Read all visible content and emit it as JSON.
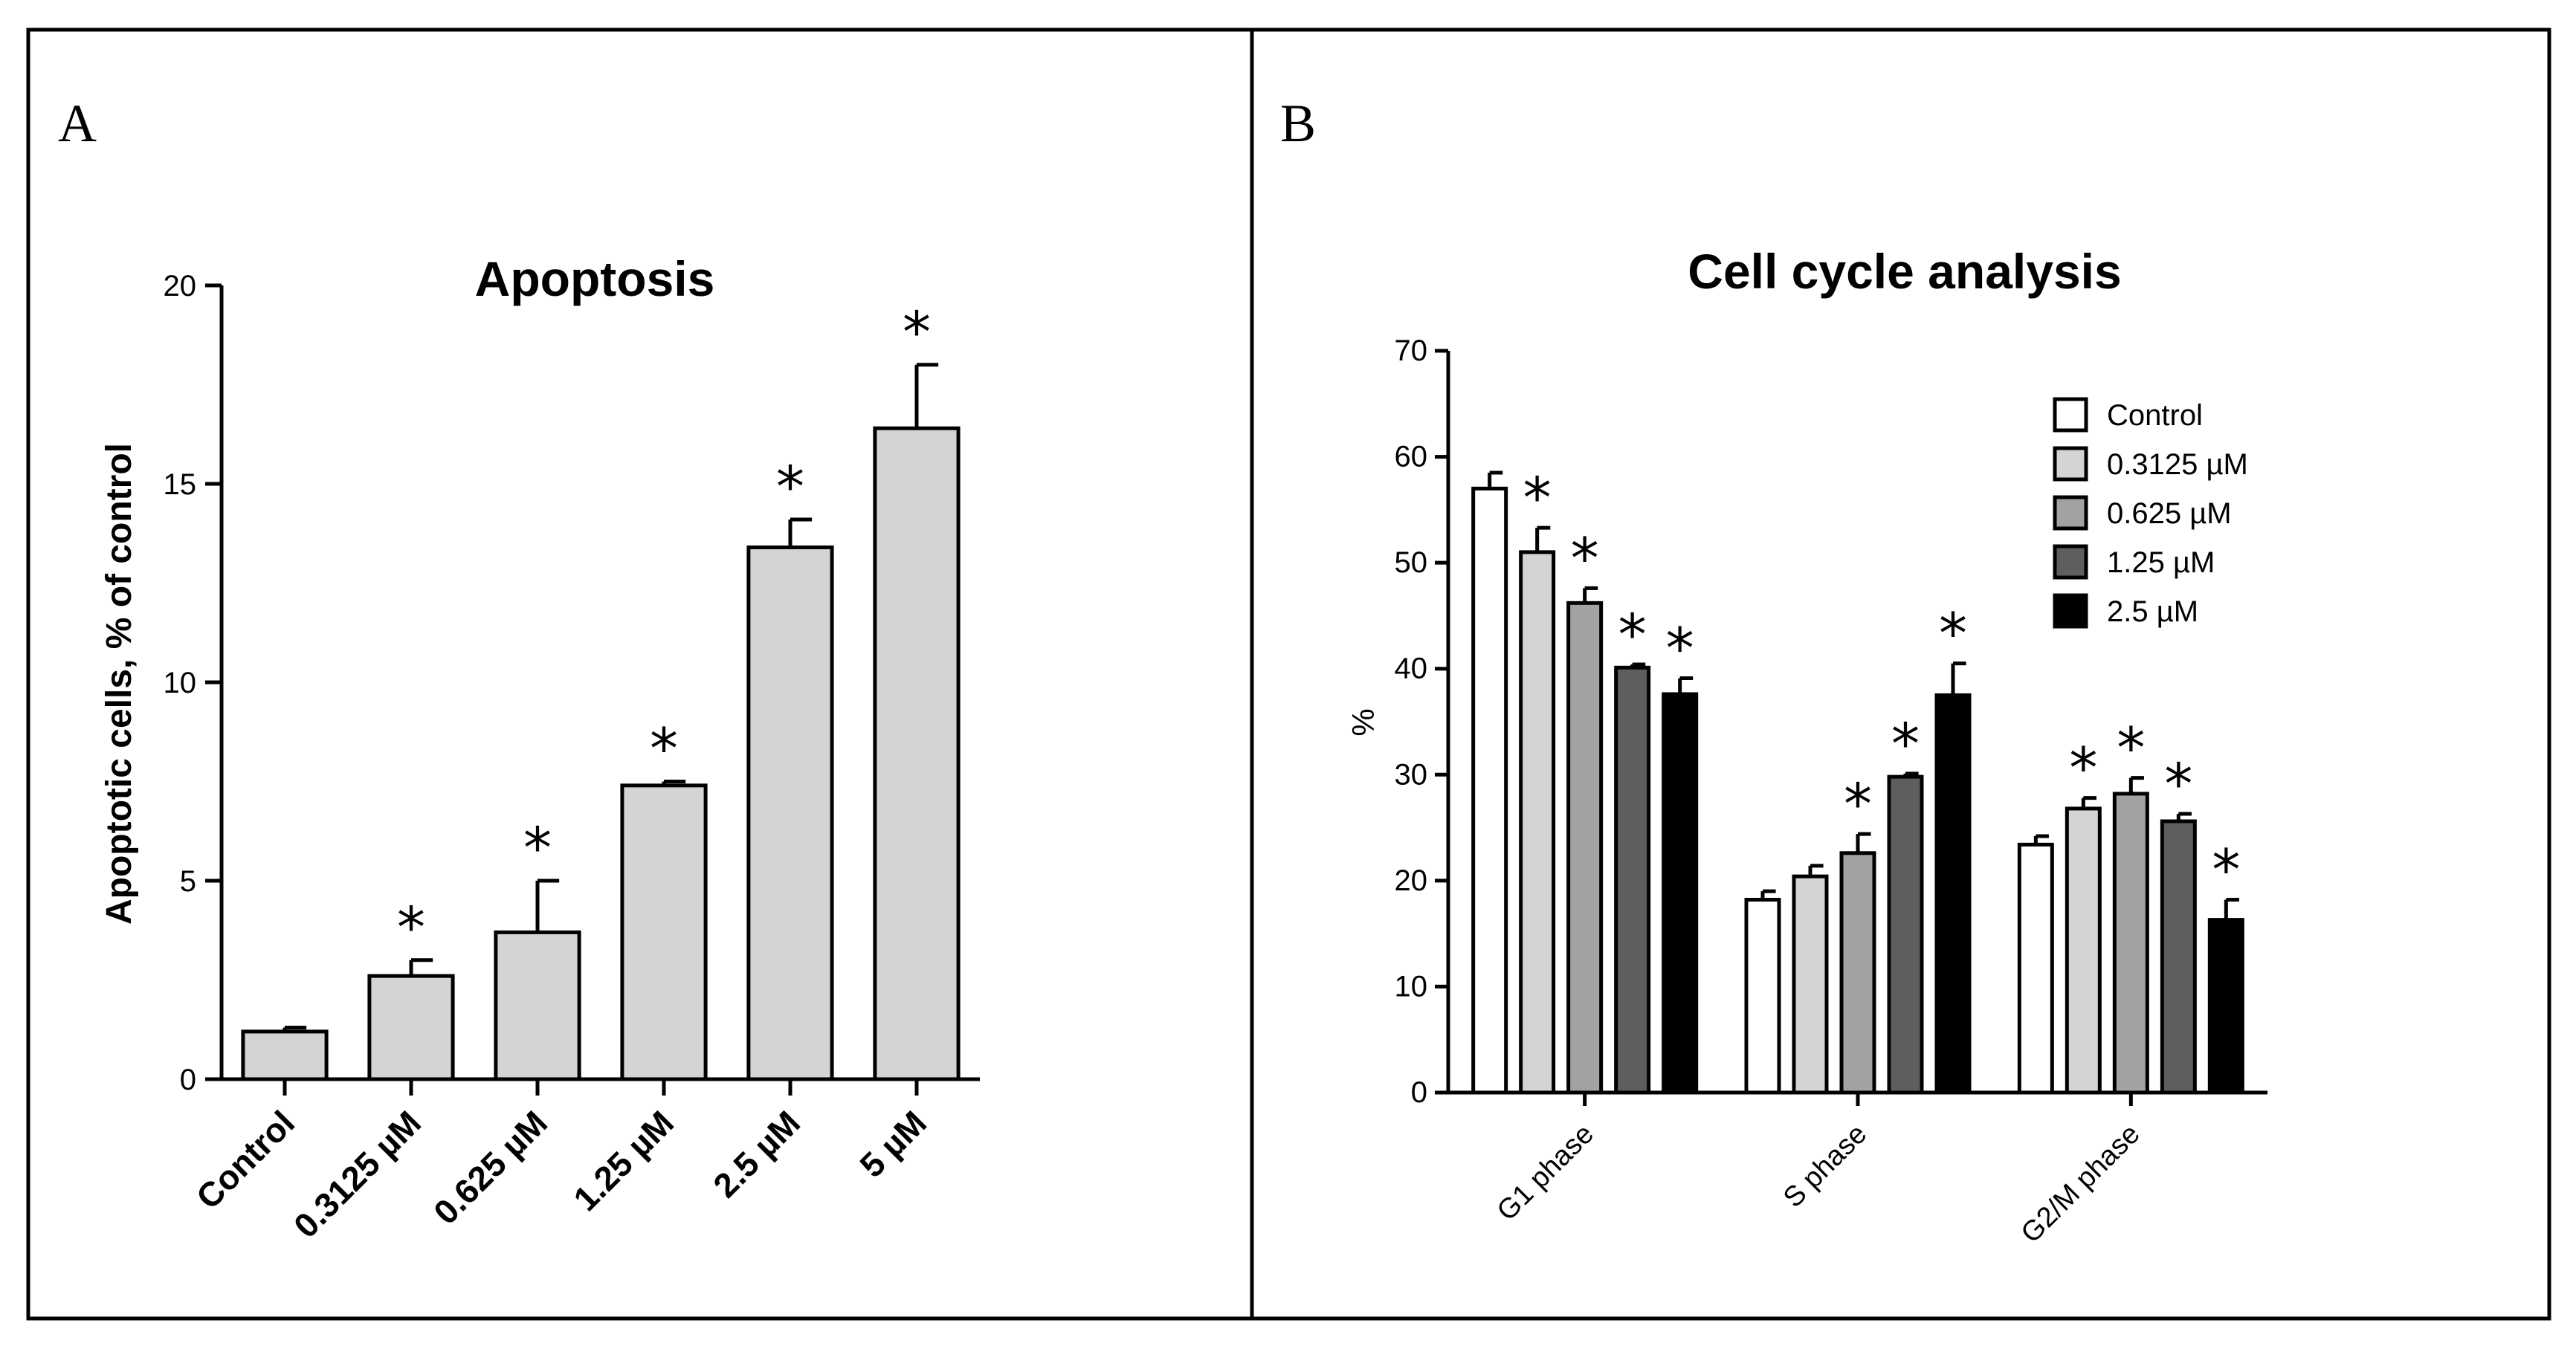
{
  "chart_data": [
    {
      "type": "bar",
      "panel_label": "A",
      "title": "Apoptosis",
      "xlabel": "",
      "ylabel": "Apoptotic cells, % of control",
      "ylim": [
        0,
        20
      ],
      "yticks": [
        "0",
        "5",
        "10",
        "15",
        "20"
      ],
      "categories": [
        "Control",
        "0.3125 µM",
        "0.625 µM",
        "1.25 µM",
        "2.5 µM",
        "5 µM"
      ],
      "values": [
        1.2,
        2.6,
        3.7,
        7.4,
        13.4,
        16.4
      ],
      "errors": [
        0.1,
        0.4,
        1.3,
        0.1,
        0.7,
        1.6
      ],
      "significance": [
        "",
        "*",
        "*",
        "*",
        "*",
        "*"
      ],
      "bar_color": "#d4d4d4"
    },
    {
      "type": "bar",
      "panel_label": "B",
      "title": "Cell cycle analysis",
      "xlabel": "",
      "ylabel": "%",
      "ylim": [
        0,
        70
      ],
      "yticks": [
        "0",
        "10",
        "20",
        "30",
        "40",
        "50",
        "60",
        "70"
      ],
      "categories": [
        "G1 phase",
        "S phase",
        "G2/M phase"
      ],
      "series": [
        {
          "name": "Control",
          "color": "#ffffff",
          "values": [
            57.0,
            18.2,
            23.4
          ],
          "errors": [
            1.5,
            0.8,
            0.8
          ],
          "significance": [
            "",
            "",
            ""
          ]
        },
        {
          "name": "0.3125 µM",
          "color": "#d4d4d4",
          "values": [
            51.0,
            20.4,
            26.8
          ],
          "errors": [
            2.3,
            1.0,
            1.0
          ],
          "significance": [
            "*",
            "",
            "*"
          ]
        },
        {
          "name": "0.625 µM",
          "color": "#a2a2a2",
          "values": [
            46.2,
            22.6,
            28.2
          ],
          "errors": [
            1.4,
            1.8,
            1.5
          ],
          "significance": [
            "*",
            "*",
            "*"
          ]
        },
        {
          "name": "1.25 µM",
          "color": "#5e5e5e",
          "values": [
            40.1,
            29.8,
            25.6
          ],
          "errors": [
            0.3,
            0.3,
            0.7
          ],
          "significance": [
            "*",
            "*",
            "*"
          ]
        },
        {
          "name": "2.5 µM",
          "color": "#000000",
          "values": [
            37.6,
            37.5,
            16.3
          ],
          "errors": [
            1.5,
            3.0,
            1.9
          ],
          "significance": [
            "*",
            "*",
            "*"
          ]
        }
      ],
      "legend_position": "top-right"
    }
  ]
}
